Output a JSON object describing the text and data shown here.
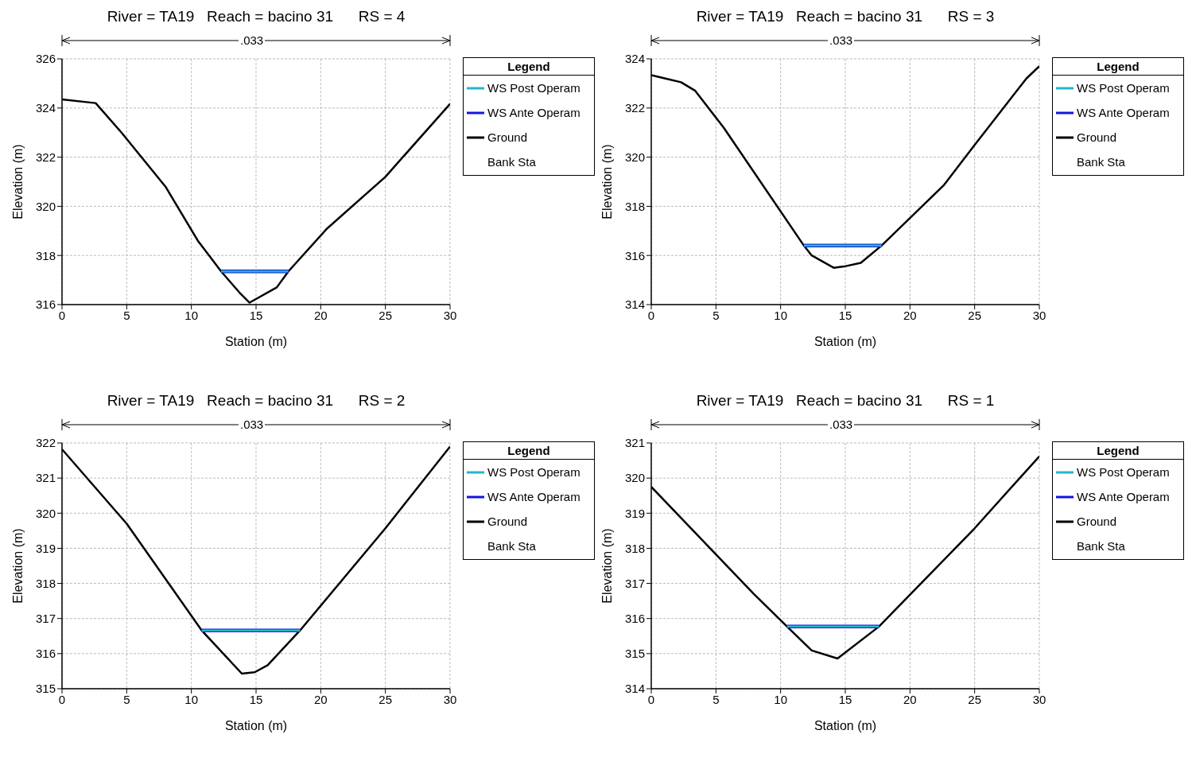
{
  "chart_data": [
    {
      "type": "line",
      "title": "River = TA19   Reach = bacino 31      RS = 4",
      "xlabel": "Station (m)",
      "ylabel": "Elevation (m)",
      "legend_title": "Legend",
      "legend": "right",
      "grid": true,
      "marker": "none",
      "line_style": "solid",
      "annotations": [
        ".033",
        "Bank Sta"
      ],
      "xlim": [
        0,
        30
      ],
      "xticks": [
        0,
        5,
        10,
        15,
        20,
        25,
        30
      ],
      "ylim": [
        316,
        326
      ],
      "yticks": [
        316,
        318,
        320,
        322,
        324,
        326
      ],
      "series": [
        {
          "name": "WS Post Operam",
          "color": "#22b8c8",
          "x": [
            12.3,
            17.5
          ],
          "values": [
            317.35,
            317.35
          ]
        },
        {
          "name": "WS Ante Operam",
          "color": "#1414e0",
          "x": [
            12.3,
            17.5
          ],
          "values": [
            317.35,
            317.35
          ]
        },
        {
          "name": "Ground",
          "color": "#000000",
          "x": [
            0,
            2.6,
            4.6,
            8,
            10.5,
            12.3,
            13.7,
            14.5,
            16.6,
            17.5,
            20.5,
            25,
            30
          ],
          "values": [
            324.35,
            324.2,
            323.0,
            320.8,
            318.6,
            317.35,
            316.5,
            316.08,
            316.7,
            317.35,
            319.1,
            321.2,
            324.17
          ]
        }
      ]
    },
    {
      "type": "line",
      "title": "River = TA19   Reach = bacino 31      RS = 3",
      "xlabel": "Station (m)",
      "ylabel": "Elevation (m)",
      "legend_title": "Legend",
      "legend": "right",
      "grid": true,
      "marker": "none",
      "line_style": "solid",
      "annotations": [
        ".033",
        "Bank Sta"
      ],
      "xlim": [
        0,
        30
      ],
      "xticks": [
        0,
        5,
        10,
        15,
        20,
        25,
        30
      ],
      "ylim": [
        314,
        324
      ],
      "yticks": [
        314,
        316,
        318,
        320,
        322,
        324
      ],
      "series": [
        {
          "name": "WS Post Operam",
          "color": "#22b8c8",
          "x": [
            11.8,
            17.8
          ],
          "values": [
            316.4,
            316.4
          ]
        },
        {
          "name": "WS Ante Operam",
          "color": "#1414e0",
          "x": [
            11.8,
            17.8
          ],
          "values": [
            316.4,
            316.4
          ]
        },
        {
          "name": "Ground",
          "color": "#000000",
          "x": [
            0,
            1.1,
            2.3,
            3.4,
            5.6,
            11.8,
            12.4,
            14.1,
            14.9,
            16.2,
            17.8,
            22.6,
            25,
            29,
            30
          ],
          "values": [
            323.34,
            323.2,
            323.05,
            322.7,
            321.2,
            316.4,
            316.0,
            315.5,
            315.55,
            315.7,
            316.4,
            318.85,
            320.5,
            323.2,
            323.7
          ]
        }
      ]
    },
    {
      "type": "line",
      "title": "River = TA19   Reach = bacino 31      RS = 2",
      "xlabel": "Station (m)",
      "ylabel": "Elevation (m)",
      "legend_title": "Legend",
      "legend": "right",
      "grid": true,
      "marker": "none",
      "line_style": "solid",
      "annotations": [
        ".033",
        "Bank Sta"
      ],
      "xlim": [
        0,
        30
      ],
      "xticks": [
        0,
        5,
        10,
        15,
        20,
        25,
        30
      ],
      "ylim": [
        315,
        322
      ],
      "yticks": [
        315,
        316,
        317,
        318,
        319,
        320,
        321,
        322
      ],
      "series": [
        {
          "name": "WS Post Operam",
          "color": "#22b8c8",
          "x": [
            10.8,
            18.4
          ],
          "values": [
            316.66,
            316.66
          ]
        },
        {
          "name": "WS Ante Operam",
          "color": "#1414e0",
          "x": [
            10.8,
            18.4
          ],
          "values": [
            316.66,
            316.66
          ]
        },
        {
          "name": "Ground",
          "color": "#000000",
          "x": [
            0,
            5,
            10.8,
            13.9,
            14.9,
            15.9,
            18.4,
            25,
            30
          ],
          "values": [
            321.82,
            319.7,
            316.66,
            315.43,
            315.47,
            315.67,
            316.66,
            319.57,
            321.9
          ]
        }
      ]
    },
    {
      "type": "line",
      "title": "River = TA19   Reach = bacino 31      RS = 1",
      "xlabel": "Station (m)",
      "ylabel": "Elevation (m)",
      "legend_title": "Legend",
      "legend": "right",
      "grid": true,
      "marker": "none",
      "line_style": "solid",
      "annotations": [
        ".033",
        "Bank Sta"
      ],
      "xlim": [
        0,
        30
      ],
      "xticks": [
        0,
        5,
        10,
        15,
        20,
        25,
        30
      ],
      "ylim": [
        314,
        321
      ],
      "yticks": [
        314,
        315,
        316,
        317,
        318,
        319,
        320,
        321
      ],
      "series": [
        {
          "name": "WS Post Operam",
          "color": "#22b8c8",
          "x": [
            10.5,
            17.6
          ],
          "values": [
            315.77,
            315.77
          ]
        },
        {
          "name": "WS Ante Operam",
          "color": "#1414e0",
          "x": [
            10.5,
            17.6
          ],
          "values": [
            315.77,
            315.77
          ]
        },
        {
          "name": "Ground",
          "color": "#000000",
          "x": [
            0,
            7.9,
            10.5,
            12.4,
            14.4,
            17.6,
            25,
            30
          ],
          "values": [
            319.75,
            316.71,
            315.77,
            315.09,
            314.86,
            315.77,
            318.57,
            320.62
          ]
        }
      ]
    }
  ]
}
